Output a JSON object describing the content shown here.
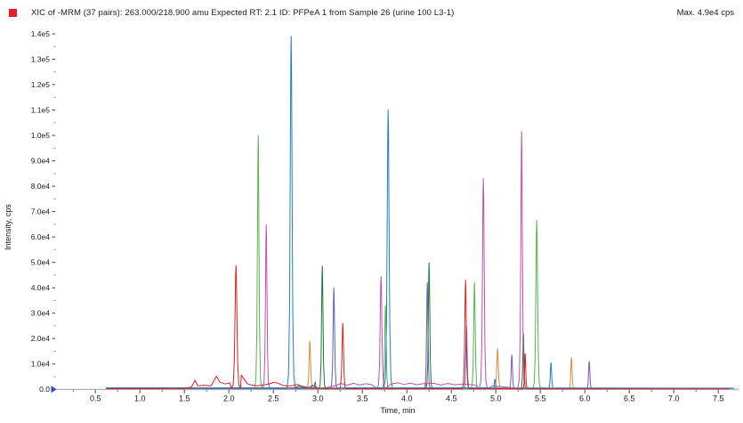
{
  "header": {
    "legend_color": "#e81c24",
    "title": "XIC of -MRM (37 pairs): 263.000/218.900 amu Expected RT: 2.1 ID: PFPeA 1 from Sample 26 (urine 100 L3-1)",
    "max_label": "Max. 4.9e4 cps"
  },
  "chart_data": {
    "type": "line",
    "title": "XIC of -MRM (37 pairs): 263.000/218.900 amu Expected RT: 2.1 ID: PFPeA 1 from Sample 26 (urine 100 L3-1)",
    "max_annotation": "Max. 4.9e4 cps",
    "xlabel": "Time, min",
    "ylabel": "Intensity, cps",
    "xlim": [
      0.05,
      7.73
    ],
    "ylim": [
      0,
      140000
    ],
    "grid": false,
    "legend_position": "top-left-swatch-only",
    "xticks": {
      "values": [
        0.5,
        1.0,
        1.5,
        2.0,
        2.5,
        3.0,
        3.5,
        4.0,
        4.5,
        5.0,
        5.5,
        6.0,
        6.5,
        7.0,
        7.5
      ],
      "labels": [
        "0.5",
        "1.0",
        "1.5",
        "2.0",
        "2.5",
        "3.0",
        "3.5",
        "4.0",
        "4.5",
        "5.0",
        "5.5",
        "6.0",
        "6.5",
        "7.0",
        "7.5"
      ],
      "minor_step": 0.25
    },
    "yticks": {
      "values": [
        0,
        10000,
        20000,
        30000,
        40000,
        50000,
        60000,
        70000,
        80000,
        90000,
        100000,
        110000,
        120000,
        130000,
        140000
      ],
      "labels": [
        "0.0",
        "1.0e4",
        "2.0e4",
        "3.0e4",
        "4.0e4",
        "5.0e4",
        "6.0e4",
        "7.0e4",
        "8.0e4",
        "9.0e4",
        "1.0e5",
        "1.1e5",
        "1.2e5",
        "1.3e5",
        "1.4e5"
      ],
      "minor_step": 5000
    },
    "origin_marker_color": "#3246c8",
    "series": [
      {
        "name": "trace-slate-blue",
        "color": "#5a62b8",
        "base": [
          [
            0.62,
            600
          ],
          [
            2.9,
            600
          ],
          [
            3.08,
            650
          ],
          [
            3.3,
            600
          ],
          [
            4.58,
            550
          ],
          [
            4.78,
            550
          ],
          [
            7.66,
            450
          ]
        ],
        "peaks": [
          [
            2.97,
            3000,
            0.028
          ],
          [
            3.18,
            40000,
            0.04
          ],
          [
            4.67,
            25000,
            0.034
          ]
        ]
      },
      {
        "name": "trace-violet",
        "color": "#7a54c4",
        "base": [
          [
            0.64,
            350
          ],
          [
            4.15,
            350
          ],
          [
            4.32,
            350
          ],
          [
            5.1,
            350
          ],
          [
            5.27,
            350
          ],
          [
            5.97,
            300
          ],
          [
            6.14,
            300
          ],
          [
            7.6,
            300
          ]
        ],
        "peaks": [
          [
            4.23,
            42000,
            0.036
          ],
          [
            5.18,
            13500,
            0.034
          ],
          [
            6.05,
            11000,
            0.034
          ]
        ]
      },
      {
        "name": "trace-orange",
        "color": "#e0893c",
        "base": [
          [
            0.64,
            300
          ],
          [
            2.83,
            350
          ],
          [
            3.0,
            400
          ],
          [
            4.13,
            300
          ],
          [
            4.29,
            300
          ],
          [
            4.93,
            350
          ],
          [
            5.11,
            350
          ],
          [
            5.77,
            300
          ],
          [
            5.94,
            300
          ],
          [
            7.6,
            250
          ]
        ],
        "peaks": [
          [
            2.91,
            19000,
            0.04
          ],
          [
            4.21,
            3200,
            0.028
          ],
          [
            5.02,
            16000,
            0.04
          ],
          [
            5.85,
            12500,
            0.035
          ]
        ]
      },
      {
        "name": "trace-dark-green",
        "color": "#17793a",
        "base": [
          [
            0.64,
            250
          ],
          [
            2.72,
            300
          ],
          [
            2.79,
            1300
          ],
          [
            2.84,
            700
          ],
          [
            2.9,
            500
          ],
          [
            2.94,
            1700
          ],
          [
            2.98,
            800
          ],
          [
            3.14,
            400
          ],
          [
            4.16,
            300
          ],
          [
            4.34,
            300
          ],
          [
            5.24,
            300
          ],
          [
            5.4,
            300
          ],
          [
            7.6,
            250
          ]
        ],
        "peaks": [
          [
            3.05,
            48500,
            0.038
          ],
          [
            4.25,
            49800,
            0.038
          ],
          [
            5.31,
            22000,
            0.032
          ]
        ]
      },
      {
        "name": "trace-light-green",
        "color": "#55b44a",
        "base": [
          [
            0.63,
            250
          ],
          [
            2.26,
            300
          ],
          [
            2.42,
            350
          ],
          [
            2.55,
            300
          ],
          [
            2.62,
            500
          ],
          [
            2.7,
            350
          ],
          [
            2.9,
            400
          ],
          [
            3.0,
            350
          ],
          [
            3.68,
            300
          ],
          [
            3.86,
            300
          ],
          [
            4.68,
            300
          ],
          [
            4.86,
            300
          ],
          [
            5.37,
            300
          ],
          [
            5.56,
            300
          ],
          [
            7.62,
            250
          ]
        ],
        "peaks": [
          [
            2.33,
            100000,
            0.042
          ],
          [
            3.76,
            33000,
            0.038
          ],
          [
            4.76,
            42000,
            0.04
          ],
          [
            5.46,
            66500,
            0.045
          ]
        ]
      },
      {
        "name": "trace-magenta",
        "color": "#c24fb0",
        "base": [
          [
            0.63,
            300
          ],
          [
            2.34,
            300
          ],
          [
            2.52,
            350
          ],
          [
            3.05,
            300
          ],
          [
            3.18,
            1300
          ],
          [
            3.26,
            2300
          ],
          [
            3.33,
            1600
          ],
          [
            3.4,
            2400
          ],
          [
            3.47,
            1700
          ],
          [
            3.54,
            2200
          ],
          [
            3.61,
            1800
          ],
          [
            3.82,
            2100
          ],
          [
            3.9,
            2600
          ],
          [
            3.97,
            1900
          ],
          [
            4.04,
            2500
          ],
          [
            4.11,
            1800
          ],
          [
            4.18,
            2200
          ],
          [
            4.3,
            2400
          ],
          [
            4.38,
            1700
          ],
          [
            4.46,
            2300
          ],
          [
            4.54,
            1800
          ],
          [
            4.62,
            2100
          ],
          [
            4.7,
            1900
          ],
          [
            4.77,
            1700
          ],
          [
            4.97,
            1400
          ],
          [
            5.07,
            1100
          ],
          [
            5.16,
            700
          ],
          [
            5.22,
            500
          ],
          [
            5.4,
            300
          ],
          [
            7.6,
            250
          ]
        ],
        "peaks": [
          [
            2.42,
            64800,
            0.04
          ],
          [
            3.71,
            44500,
            0.045
          ],
          [
            4.86,
            83000,
            0.045
          ],
          [
            5.29,
            101500,
            0.042
          ]
        ]
      },
      {
        "name": "trace-blue",
        "color": "#1f7fc6",
        "base": [
          [
            0.62,
            450
          ],
          [
            2.63,
            500
          ],
          [
            2.8,
            500
          ],
          [
            3.7,
            500
          ],
          [
            3.9,
            600
          ],
          [
            4.93,
            600
          ],
          [
            5.55,
            500
          ],
          [
            5.72,
            450
          ],
          [
            7.68,
            400
          ]
        ],
        "peaks": [
          [
            2.7,
            139000,
            0.048
          ],
          [
            3.79,
            110000,
            0.05
          ],
          [
            4.99,
            4000,
            0.028
          ],
          [
            5.62,
            10500,
            0.035
          ]
        ]
      },
      {
        "name": "trace-red",
        "color": "#e02020",
        "base": [
          [
            0.62,
            250
          ],
          [
            1.5,
            300
          ],
          [
            1.58,
            900
          ],
          [
            1.62,
            3600
          ],
          [
            1.65,
            1400
          ],
          [
            1.72,
            1600
          ],
          [
            1.8,
            1400
          ],
          [
            1.86,
            5200
          ],
          [
            1.9,
            2800
          ],
          [
            1.96,
            2100
          ],
          [
            2.01,
            2600
          ],
          [
            2.14,
            5600
          ],
          [
            2.17,
            4000
          ],
          [
            2.21,
            2100
          ],
          [
            2.26,
            1700
          ],
          [
            2.31,
            1400
          ],
          [
            2.37,
            1600
          ],
          [
            2.44,
            2000
          ],
          [
            2.5,
            2700
          ],
          [
            2.55,
            2500
          ],
          [
            2.6,
            1600
          ],
          [
            2.66,
            1300
          ],
          [
            2.72,
            1500
          ],
          [
            2.78,
            1900
          ],
          [
            2.82,
            1200
          ],
          [
            2.88,
            800
          ],
          [
            2.95,
            600
          ],
          [
            3.05,
            400
          ],
          [
            3.18,
            300
          ],
          [
            3.4,
            250
          ],
          [
            4.55,
            250
          ],
          [
            4.78,
            250
          ],
          [
            5.22,
            250
          ],
          [
            5.45,
            200
          ],
          [
            7.62,
            200
          ]
        ],
        "peaks": [
          [
            2.08,
            48700,
            0.05
          ],
          [
            3.28,
            26000,
            0.04
          ],
          [
            4.66,
            43000,
            0.04
          ],
          [
            5.33,
            14000,
            0.03
          ]
        ]
      }
    ]
  }
}
